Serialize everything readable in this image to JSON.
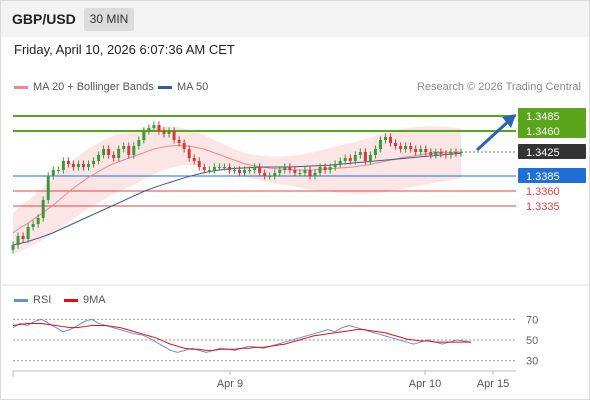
{
  "header": {
    "symbol": "GBP/USD",
    "timeframe": "30 MIN",
    "datetime": "Friday, April 10, 2026 6:07:36 AM CET"
  },
  "legend": {
    "bb": "MA 20 + Bollinger Bands",
    "ma50": "MA 50",
    "credit": "Research © 2026 Trading Central"
  },
  "rsi_legend": {
    "rsi": "RSI",
    "ma9": "9MA"
  },
  "colors": {
    "resistance": "#5aa51c",
    "support_pivot": "#1f6fd6",
    "support": "#e44242",
    "ma20": "#f08a8a",
    "ma50": "#3b5a9a",
    "candle_up": "#3a9a3a",
    "candle_down": "#d23b3b",
    "rsi": "#6c8fd8",
    "rsi_ma": "#e01010",
    "arrow": "#2a63b0"
  },
  "chart_data": {
    "type": "candlestick",
    "xlabels": [
      "Apr 9",
      "Apr 10",
      "Apr 15"
    ],
    "ylim": [
      1.324,
      1.351
    ],
    "levels": [
      {
        "value": 1.3485,
        "label": "1.3485",
        "kind": "resistance"
      },
      {
        "value": 1.346,
        "label": "1.3460",
        "kind": "resistance"
      },
      {
        "value": 1.3425,
        "label": "1.3425",
        "kind": "current"
      },
      {
        "value": 1.3385,
        "label": "1.3385",
        "kind": "pivot"
      },
      {
        "value": 1.336,
        "label": "1.3360",
        "kind": "support"
      },
      {
        "value": 1.3335,
        "label": "1.3335",
        "kind": "support"
      }
    ],
    "close": [
      1.327,
      1.3285,
      1.328,
      1.33,
      1.3305,
      1.3315,
      1.3345,
      1.3385,
      1.3395,
      1.3395,
      1.341,
      1.3405,
      1.34,
      1.3405,
      1.34,
      1.3405,
      1.341,
      1.342,
      1.343,
      1.342,
      1.3415,
      1.343,
      1.3435,
      1.342,
      1.3435,
      1.3445,
      1.346,
      1.3465,
      1.347,
      1.346,
      1.3455,
      1.346,
      1.3445,
      1.344,
      1.343,
      1.3415,
      1.341,
      1.34,
      1.3395,
      1.3395,
      1.34,
      1.34,
      1.34,
      1.3395,
      1.3395,
      1.339,
      1.3395,
      1.3395,
      1.34,
      1.339,
      1.3385,
      1.3385,
      1.339,
      1.3395,
      1.34,
      1.3395,
      1.339,
      1.339,
      1.3395,
      1.3385,
      1.339,
      1.34,
      1.3395,
      1.34,
      1.3405,
      1.341,
      1.3415,
      1.341,
      1.342,
      1.3425,
      1.341,
      1.342,
      1.343,
      1.3445,
      1.345,
      1.344,
      1.3435,
      1.343,
      1.3435,
      1.343,
      1.3425,
      1.343,
      1.3425,
      1.342,
      1.3425,
      1.3422,
      1.342,
      1.3425,
      1.3423,
      1.3425
    ],
    "ma20": [
      1.329,
      1.33,
      1.3308,
      1.3318,
      1.3328,
      1.3338,
      1.335,
      1.3362,
      1.3372,
      1.3382,
      1.339,
      1.3398,
      1.3405,
      1.341,
      1.3415,
      1.342,
      1.3425,
      1.343,
      1.3433,
      1.3435,
      1.3436,
      1.3435,
      1.3433,
      1.343,
      1.3425,
      1.342,
      1.3415,
      1.341,
      1.3405,
      1.3402,
      1.34,
      1.3398,
      1.3397,
      1.3396,
      1.3395,
      1.3395,
      1.3395,
      1.3396,
      1.3397,
      1.3398,
      1.3399,
      1.34,
      1.3402,
      1.3404,
      1.3407,
      1.341,
      1.3413,
      1.3416,
      1.3418,
      1.342,
      1.3422,
      1.3423,
      1.3424,
      1.3424,
      1.3425
    ],
    "ma50": [
      1.327,
      1.3275,
      1.3282,
      1.329,
      1.33,
      1.331,
      1.332,
      1.333,
      1.334,
      1.335,
      1.336,
      1.3368,
      1.3375,
      1.3382,
      1.3388,
      1.3393,
      1.3396,
      1.3398,
      1.3399,
      1.34,
      1.34,
      1.34,
      1.3401,
      1.3402,
      1.3403,
      1.3405,
      1.3407,
      1.3409,
      1.3411,
      1.3413,
      1.3415,
      1.3417,
      1.3419,
      1.3421,
      1.3423
    ],
    "rsi": [
      62,
      66,
      64,
      68,
      70,
      66,
      62,
      58,
      60,
      64,
      68,
      70,
      66,
      64,
      62,
      60,
      58,
      56,
      55,
      52,
      48,
      44,
      40,
      38,
      40,
      42,
      40,
      38,
      40,
      42,
      41,
      40,
      42,
      44,
      43,
      42,
      44,
      46,
      48,
      50,
      52,
      54,
      56,
      58,
      60,
      58,
      62,
      64,
      62,
      60,
      58,
      56,
      54,
      52,
      50,
      48,
      46,
      48,
      50,
      48,
      46,
      48,
      50,
      49,
      48
    ],
    "rsi_ma": [
      64,
      65,
      66,
      66,
      66,
      65,
      64,
      63,
      62,
      62,
      63,
      64,
      64,
      64,
      63,
      62,
      60,
      58,
      56,
      54,
      52,
      49,
      46,
      44,
      42,
      41,
      41,
      40,
      40,
      41,
      41,
      41,
      42,
      42,
      43,
      43,
      44,
      45,
      46,
      48,
      50,
      52,
      54,
      55,
      56,
      57,
      58,
      59,
      60,
      60,
      59,
      58,
      57,
      55,
      53,
      51,
      50,
      49,
      49,
      48,
      48,
      48,
      48,
      48,
      48
    ],
    "rsi_levels": [
      {
        "value": 70,
        "label": "70"
      },
      {
        "value": 50,
        "label": "50"
      },
      {
        "value": 30,
        "label": "30"
      }
    ]
  }
}
